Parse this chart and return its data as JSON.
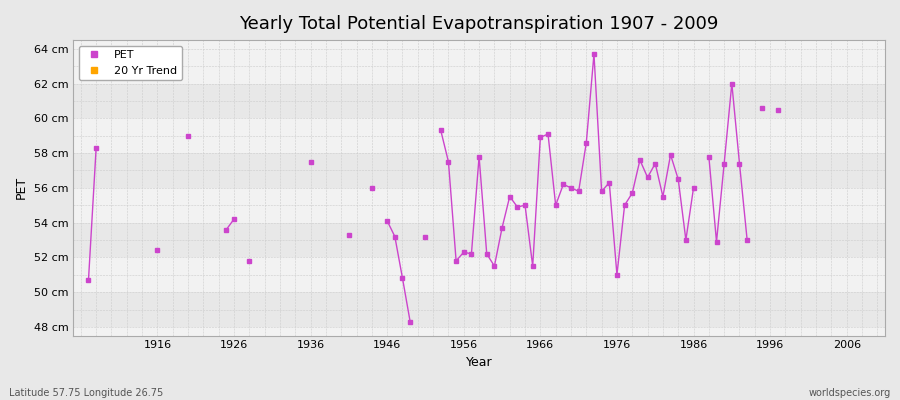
{
  "title": "Yearly Total Potential Evapotranspiration 1907 - 2009",
  "xlabel": "Year",
  "ylabel": "PET",
  "subtitle_left": "Latitude 57.75 Longitude 26.75",
  "subtitle_right": "worldspecies.org",
  "ylim": [
    47.5,
    64.5
  ],
  "xlim": [
    1905,
    2011
  ],
  "yticks": [
    48,
    50,
    52,
    54,
    56,
    58,
    60,
    62,
    64
  ],
  "ytick_labels": [
    "48 cm",
    "50 cm",
    "52 cm",
    "54 cm",
    "56 cm",
    "58 cm",
    "60 cm",
    "62 cm",
    "64 cm"
  ],
  "xticks": [
    1916,
    1926,
    1936,
    1946,
    1956,
    1966,
    1976,
    1986,
    1996,
    2006
  ],
  "pet_color": "#cc44cc",
  "trend_color": "#FFA500",
  "bg_color": "#e8e8e8",
  "plot_bg_color": "#f2f2f2",
  "band_color_light": "#f2f2f2",
  "band_color_dark": "#e8e8e8",
  "pet_data": [
    [
      1907,
      50.7
    ],
    [
      1908,
      58.3
    ],
    [
      1916,
      52.4
    ],
    [
      1920,
      59.0
    ],
    [
      1925,
      53.6
    ],
    [
      1926,
      54.2
    ],
    [
      1928,
      51.8
    ],
    [
      1936,
      57.5
    ],
    [
      1941,
      53.3
    ],
    [
      1944,
      56.0
    ],
    [
      1946,
      54.1
    ],
    [
      1947,
      53.2
    ],
    [
      1948,
      50.8
    ],
    [
      1949,
      48.3
    ],
    [
      1951,
      53.2
    ],
    [
      1953,
      59.3
    ],
    [
      1954,
      57.5
    ],
    [
      1955,
      51.8
    ],
    [
      1956,
      52.3
    ],
    [
      1957,
      52.2
    ],
    [
      1958,
      57.8
    ],
    [
      1959,
      52.2
    ],
    [
      1960,
      51.5
    ],
    [
      1961,
      53.7
    ],
    [
      1962,
      55.5
    ],
    [
      1963,
      54.9
    ],
    [
      1964,
      55.0
    ],
    [
      1965,
      51.5
    ],
    [
      1966,
      58.9
    ],
    [
      1967,
      59.1
    ],
    [
      1968,
      55.0
    ],
    [
      1969,
      56.2
    ],
    [
      1970,
      56.0
    ],
    [
      1971,
      55.8
    ],
    [
      1972,
      58.6
    ],
    [
      1973,
      63.7
    ],
    [
      1974,
      55.8
    ],
    [
      1975,
      56.3
    ],
    [
      1976,
      51.0
    ],
    [
      1977,
      55.0
    ],
    [
      1978,
      55.7
    ],
    [
      1979,
      57.6
    ],
    [
      1980,
      56.6
    ],
    [
      1981,
      57.4
    ],
    [
      1982,
      55.5
    ],
    [
      1983,
      57.9
    ],
    [
      1984,
      56.5
    ],
    [
      1985,
      53.0
    ],
    [
      1986,
      56.0
    ],
    [
      1988,
      57.8
    ],
    [
      1989,
      52.9
    ],
    [
      1990,
      57.4
    ],
    [
      1991,
      62.0
    ],
    [
      1992,
      57.4
    ],
    [
      1993,
      53.0
    ],
    [
      1995,
      60.6
    ],
    [
      1997,
      60.5
    ]
  ],
  "legend_pet_label": "PET",
  "legend_trend_label": "20 Yr Trend",
  "grid_major_color": "#bbbbbb",
  "grid_minor_color": "#cccccc",
  "title_fontsize": 13,
  "label_fontsize": 9,
  "tick_fontsize": 8
}
